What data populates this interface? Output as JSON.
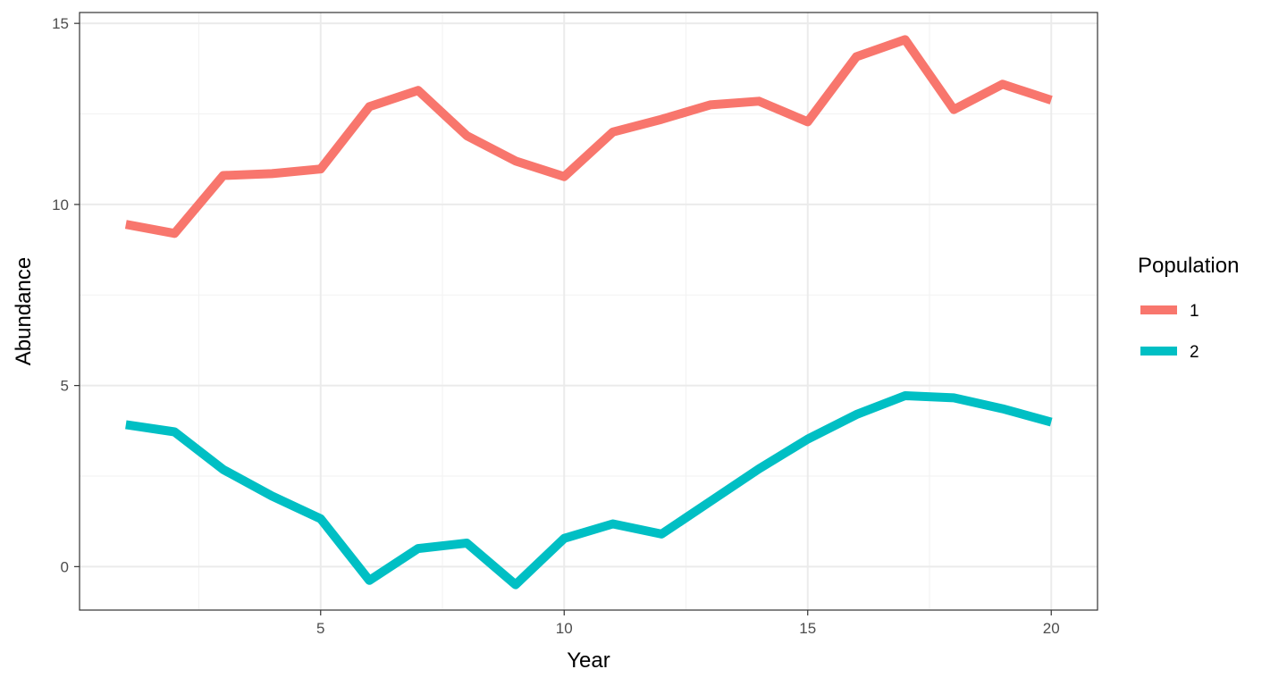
{
  "chart_data": {
    "type": "line",
    "title": "",
    "xlabel": "Year",
    "ylabel": "Abundance",
    "xlim": [
      0.05,
      20.95
    ],
    "ylim": [
      -1.2,
      15.3
    ],
    "x_ticks": [
      5,
      10,
      15,
      20
    ],
    "x_minor_ticks": [
      2.5,
      7.5,
      12.5,
      17.5
    ],
    "y_ticks": [
      0,
      5,
      10,
      15
    ],
    "y_minor_ticks": [
      2.5,
      7.5,
      12.5
    ],
    "grid": true,
    "legend": {
      "title": "Population",
      "placement": "right",
      "entries": [
        "1",
        "2"
      ]
    },
    "x": [
      1,
      2,
      3,
      4,
      5,
      6,
      7,
      8,
      9,
      10,
      11,
      12,
      13,
      14,
      15,
      16,
      17,
      18,
      19,
      20
    ],
    "series": [
      {
        "name": "1",
        "color": "#F8766D",
        "values": [
          9.45,
          9.2,
          10.8,
          10.85,
          10.98,
          12.7,
          13.15,
          11.9,
          11.2,
          10.77,
          12.0,
          12.35,
          12.75,
          12.85,
          12.28,
          14.08,
          14.55,
          12.62,
          13.32,
          12.88
        ]
      },
      {
        "name": "2",
        "color": "#00BFC4",
        "values": [
          3.92,
          3.72,
          2.68,
          1.95,
          1.32,
          -0.38,
          0.5,
          0.65,
          -0.5,
          0.78,
          1.18,
          0.9,
          1.8,
          2.7,
          3.52,
          4.2,
          4.72,
          4.66,
          4.36,
          3.99
        ]
      }
    ]
  }
}
